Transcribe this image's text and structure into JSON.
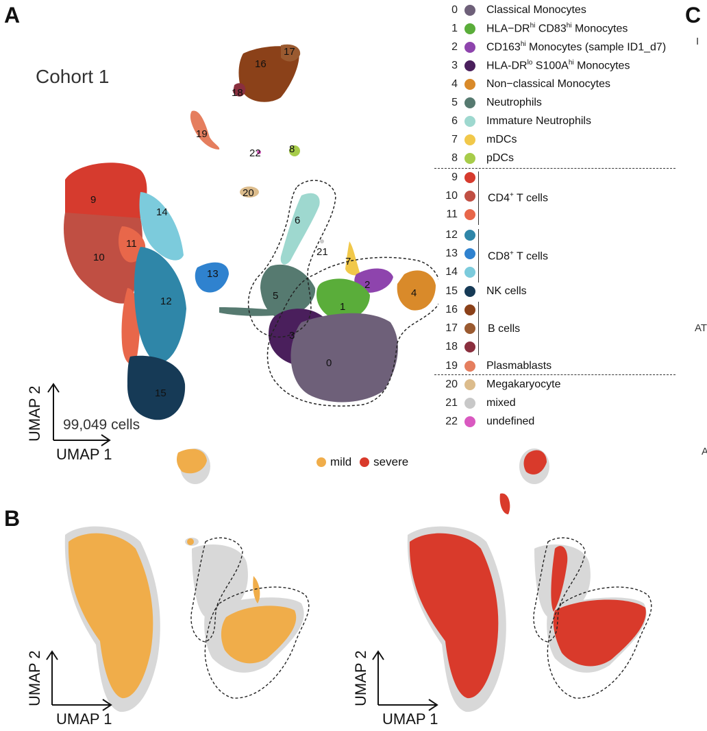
{
  "panels": {
    "a": "A",
    "b": "B",
    "c": "C"
  },
  "panel_a": {
    "title": "Cohort 1",
    "cell_count": "99,049 cells",
    "x_axis": "UMAP 1",
    "y_axis": "UMAP 2"
  },
  "panel_b": {
    "x_axis_left": "UMAP 1",
    "y_axis_left": "UMAP 2",
    "x_axis_right": "UMAP 1",
    "y_axis_right": "UMAP 2",
    "legend": [
      {
        "label": "mild",
        "color": "#f0ad4a"
      },
      {
        "label": "severe",
        "color": "#d93a2b"
      }
    ]
  },
  "clusters": [
    {
      "id": "0",
      "color": "#6e6079"
    },
    {
      "id": "1",
      "color": "#5aad3a"
    },
    {
      "id": "2",
      "color": "#8e44ad"
    },
    {
      "id": "3",
      "color": "#4a1f5c"
    },
    {
      "id": "4",
      "color": "#d98a2a"
    },
    {
      "id": "5",
      "color": "#567a70"
    },
    {
      "id": "6",
      "color": "#9ed8cf"
    },
    {
      "id": "7",
      "color": "#f1c84a"
    },
    {
      "id": "8",
      "color": "#a7cc4a"
    },
    {
      "id": "9",
      "color": "#d63b2e"
    },
    {
      "id": "10",
      "color": "#c04f43"
    },
    {
      "id": "11",
      "color": "#e8674a"
    },
    {
      "id": "12",
      "color": "#2f86a8"
    },
    {
      "id": "13",
      "color": "#2f82cf"
    },
    {
      "id": "14",
      "color": "#7ccbdc"
    },
    {
      "id": "15",
      "color": "#163a56"
    },
    {
      "id": "16",
      "color": "#8b4119"
    },
    {
      "id": "17",
      "color": "#9a5a30"
    },
    {
      "id": "18",
      "color": "#8a2f3e"
    },
    {
      "id": "19",
      "color": "#e57e5e"
    },
    {
      "id": "20",
      "color": "#dcbc8c"
    },
    {
      "id": "21",
      "color": "#c8c8c8"
    },
    {
      "id": "22",
      "color": "#d959c0"
    }
  ],
  "legend_labels": {
    "c0": "Classical Monocytes",
    "c1_a": "HLA−DR",
    "c1_b": "hi",
    "c1_c": " CD83",
    "c1_d": "hi",
    "c1_e": " Monocytes",
    "c2_a": "CD163",
    "c2_b": "hi",
    "c2_c": " Monocytes (sample ID1_d7)",
    "c3_a": "HLA-DR",
    "c3_b": "lo",
    "c3_c": " S100A",
    "c3_d": "hi",
    "c3_e": " Monocytes",
    "c4": "Non−classical Monocytes",
    "c5": "Neutrophils",
    "c6": "Immature Neutrophils",
    "c7": "mDCs",
    "c8": "pDCs",
    "cd4_a": "CD4",
    "cd4_b": "+",
    "cd4_c": " T cells",
    "cd8_a": "CD8",
    "cd8_b": "+",
    "cd8_c": " T cells",
    "c15": "NK cells",
    "bcells": "B cells",
    "c19": "Plasmablasts",
    "c20": "Megakaryocyte",
    "c21": "mixed",
    "c22": "undefined"
  },
  "cut_text": {
    "t1": "I",
    "t2": "AT",
    "t3": "A"
  }
}
